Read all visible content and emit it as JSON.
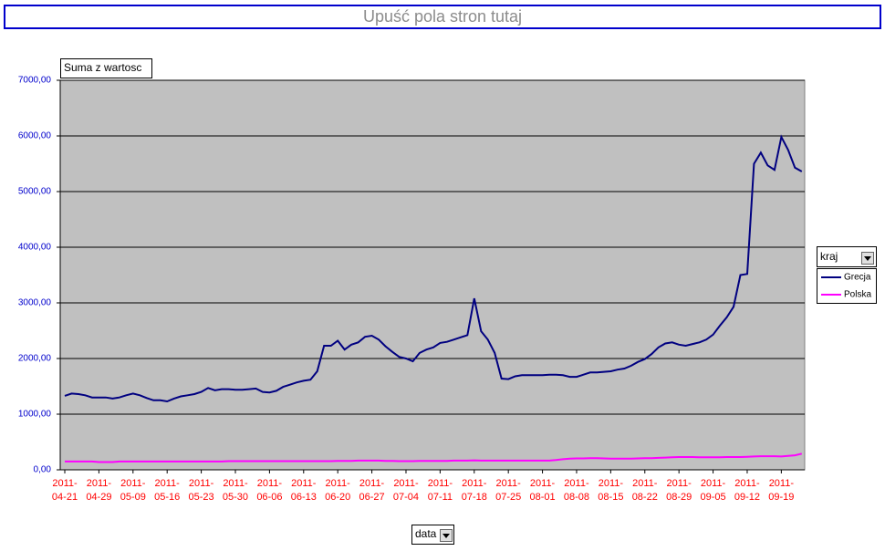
{
  "chart_data": {
    "type": "line",
    "page_field_prompt": "Upuść pola stron tutaj",
    "data_field": "Suma z wartosc",
    "legend_field": "kraj",
    "category_field": "data",
    "categories": [
      "2011-04-21",
      null,
      null,
      null,
      null,
      "2011-04-29",
      null,
      null,
      null,
      null,
      "2011-05-09",
      null,
      null,
      null,
      null,
      "2011-05-16",
      null,
      null,
      null,
      null,
      "2011-05-23",
      null,
      null,
      null,
      null,
      "2011-05-30",
      null,
      null,
      null,
      null,
      "2011-06-06",
      null,
      null,
      null,
      null,
      "2011-06-13",
      null,
      null,
      null,
      null,
      "2011-06-20",
      null,
      null,
      null,
      null,
      "2011-06-27",
      null,
      null,
      null,
      null,
      "2011-07-04",
      null,
      null,
      null,
      null,
      "2011-07-11",
      null,
      null,
      null,
      null,
      "2011-07-18",
      null,
      null,
      null,
      null,
      "2011-07-25",
      null,
      null,
      null,
      null,
      "2011-08-01",
      null,
      null,
      null,
      null,
      "2011-08-08",
      null,
      null,
      null,
      null,
      "2011-08-15",
      null,
      null,
      null,
      null,
      "2011-08-22",
      null,
      null,
      null,
      null,
      "2011-08-29",
      null,
      null,
      null,
      null,
      "2011-09-05",
      null,
      null,
      null,
      null,
      "2011-09-12",
      null,
      null,
      null,
      null,
      "2011-09-19",
      null,
      null,
      null
    ],
    "series": [
      {
        "name": "Grecja",
        "color": "#000080",
        "values": [
          1330,
          1370,
          1360,
          1340,
          1300,
          1300,
          1300,
          1280,
          1300,
          1340,
          1370,
          1340,
          1290,
          1250,
          1250,
          1230,
          1280,
          1320,
          1340,
          1360,
          1400,
          1470,
          1430,
          1450,
          1450,
          1440,
          1440,
          1450,
          1460,
          1400,
          1390,
          1420,
          1490,
          1530,
          1570,
          1600,
          1620,
          1770,
          2230,
          2230,
          2320,
          2160,
          2250,
          2290,
          2390,
          2410,
          2340,
          2220,
          2120,
          2030,
          2000,
          1950,
          2100,
          2160,
          2200,
          2280,
          2300,
          2340,
          2380,
          2420,
          3080,
          2490,
          2340,
          2100,
          1640,
          1630,
          1680,
          1700,
          1700,
          1700,
          1700,
          1710,
          1710,
          1700,
          1670,
          1670,
          1710,
          1750,
          1750,
          1760,
          1770,
          1800,
          1820,
          1870,
          1940,
          1990,
          2080,
          2200,
          2270,
          2290,
          2250,
          2230,
          2260,
          2290,
          2340,
          2430,
          2590,
          2740,
          2930,
          3500,
          3520,
          5500,
          5700,
          5470,
          5390,
          5980,
          5750,
          5430,
          5360
        ]
      },
      {
        "name": "Polska",
        "color": "#ff00ff",
        "values": [
          150,
          150,
          150,
          150,
          150,
          140,
          140,
          140,
          150,
          150,
          150,
          150,
          150,
          150,
          150,
          150,
          150,
          150,
          150,
          150,
          150,
          150,
          150,
          150,
          155,
          155,
          155,
          155,
          155,
          155,
          155,
          155,
          155,
          155,
          155,
          155,
          155,
          155,
          155,
          155,
          160,
          160,
          160,
          165,
          165,
          165,
          165,
          160,
          160,
          155,
          155,
          155,
          160,
          160,
          160,
          160,
          160,
          165,
          165,
          165,
          170,
          165,
          165,
          165,
          165,
          165,
          165,
          165,
          165,
          165,
          165,
          165,
          175,
          190,
          200,
          205,
          205,
          210,
          210,
          205,
          200,
          200,
          200,
          200,
          205,
          210,
          210,
          215,
          220,
          225,
          230,
          230,
          230,
          225,
          225,
          225,
          225,
          230,
          230,
          230,
          235,
          240,
          245,
          245,
          245,
          240,
          250,
          260,
          290
        ]
      }
    ],
    "ylim": [
      0,
      7000
    ],
    "yticks": [
      {
        "value": 0,
        "label": "0,00"
      },
      {
        "value": 1000,
        "label": "1000,00"
      },
      {
        "value": 2000,
        "label": "2000,00"
      },
      {
        "value": 3000,
        "label": "3000,00"
      },
      {
        "value": 4000,
        "label": "4000,00"
      },
      {
        "value": 5000,
        "label": "5000,00"
      },
      {
        "value": 6000,
        "label": "6000,00"
      },
      {
        "value": 7000,
        "label": "7000,00"
      }
    ],
    "grid": true,
    "legend": "right"
  }
}
